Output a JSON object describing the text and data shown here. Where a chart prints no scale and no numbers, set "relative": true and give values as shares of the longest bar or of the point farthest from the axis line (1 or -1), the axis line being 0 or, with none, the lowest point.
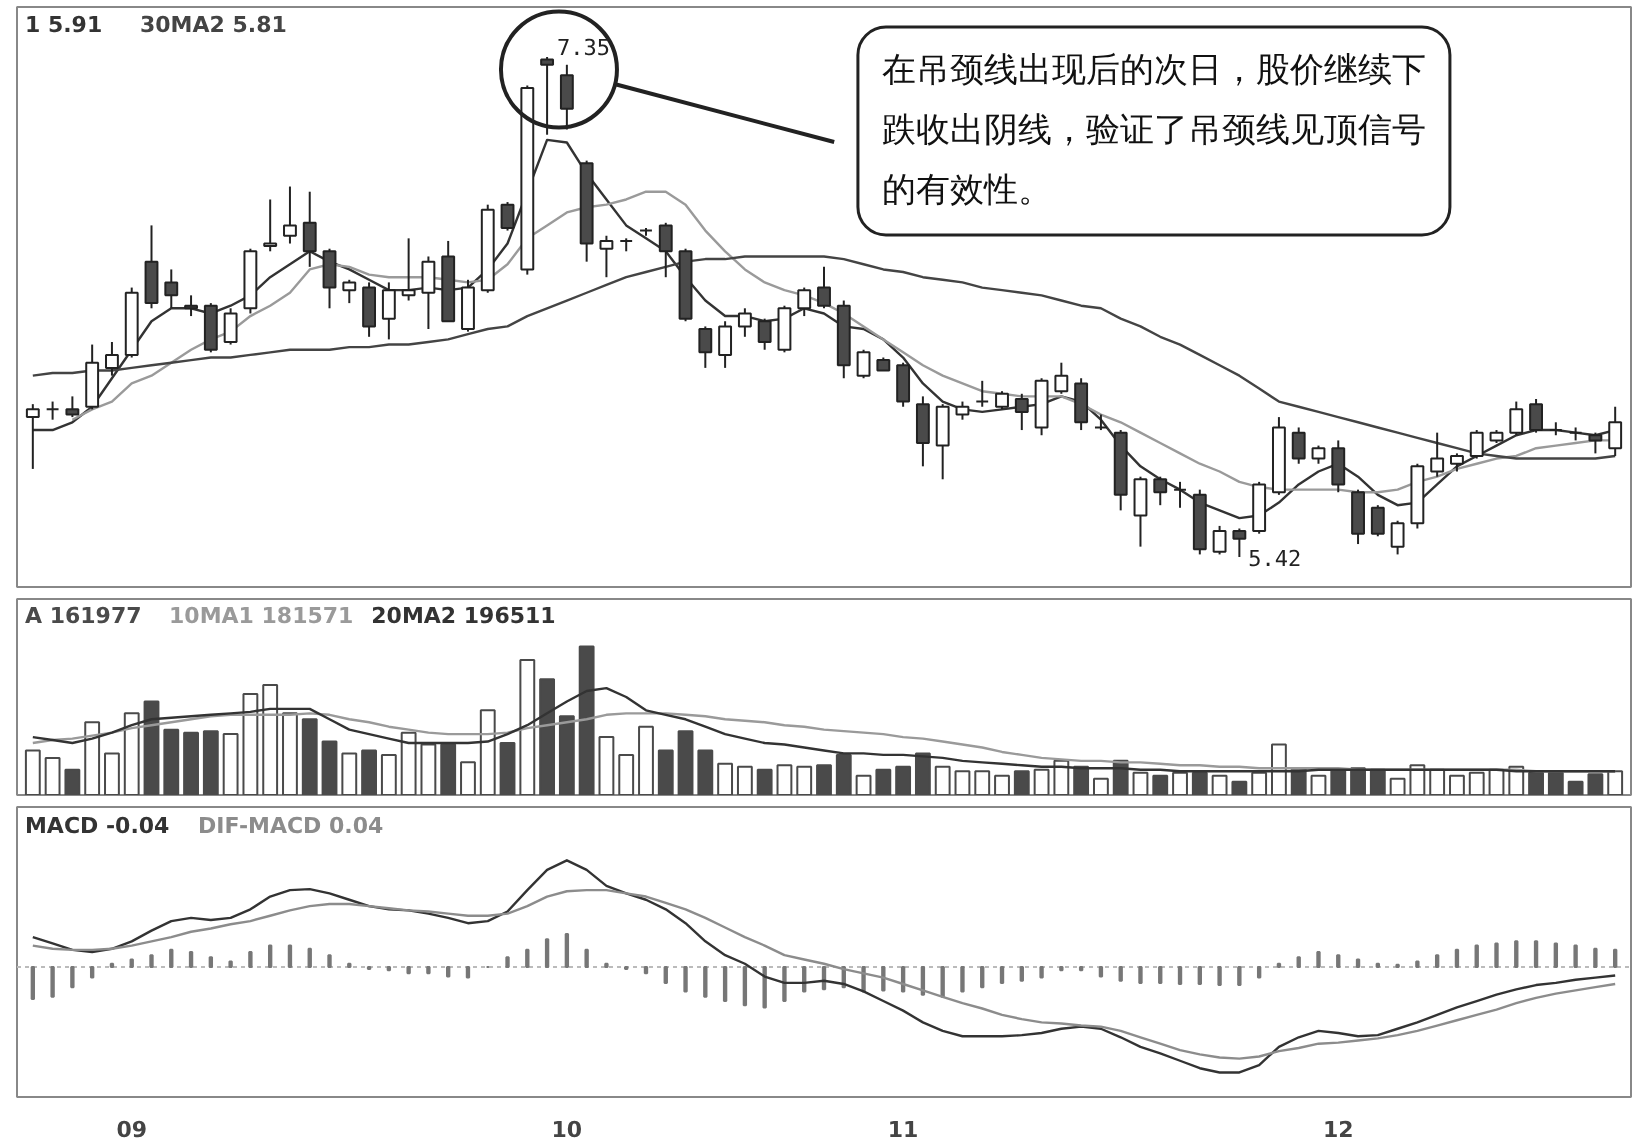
{
  "chart_data": [
    {
      "type": "candlestick",
      "legend": "top left",
      "tick_labels": false,
      "categories": [
        null,
        null,
        null,
        null,
        null,
        "09",
        null,
        null,
        null,
        null,
        null,
        null,
        null,
        null,
        null,
        null,
        null,
        null,
        null,
        null,
        null,
        null,
        null,
        null,
        null,
        null,
        null,
        "10",
        null,
        null,
        null,
        null,
        null,
        null,
        null,
        null,
        null,
        null,
        null,
        null,
        null,
        null,
        null,
        null,
        "11",
        null,
        null,
        null,
        null,
        null,
        null,
        null,
        null,
        null,
        null,
        null,
        null,
        null,
        null,
        null,
        null,
        null,
        null,
        null,
        null,
        null,
        "12",
        null,
        null,
        null,
        null,
        null,
        null,
        null,
        null,
        null,
        null,
        null,
        null,
        null,
        null
      ],
      "ohlc": [
        [
          5.96,
          6.01,
          5.76,
          5.99
        ],
        [
          5.99,
          6.02,
          5.95,
          5.99
        ],
        [
          5.99,
          6.04,
          5.96,
          5.97
        ],
        [
          6.0,
          6.24,
          5.99,
          6.17
        ],
        [
          6.15,
          6.25,
          6.12,
          6.2
        ],
        [
          6.2,
          6.46,
          6.19,
          6.44
        ],
        [
          6.56,
          6.7,
          6.38,
          6.4
        ],
        [
          6.48,
          6.53,
          6.38,
          6.43
        ],
        [
          6.39,
          6.43,
          6.35,
          6.38
        ],
        [
          6.39,
          6.4,
          6.21,
          6.22
        ],
        [
          6.25,
          6.38,
          6.24,
          6.36
        ],
        [
          6.38,
          6.61,
          6.36,
          6.6
        ],
        [
          6.62,
          6.8,
          6.6,
          6.63
        ],
        [
          6.66,
          6.85,
          6.63,
          6.7
        ],
        [
          6.71,
          6.83,
          6.54,
          6.6
        ],
        [
          6.6,
          6.61,
          6.38,
          6.46
        ],
        [
          6.45,
          6.49,
          6.4,
          6.48
        ],
        [
          6.46,
          6.48,
          6.27,
          6.31
        ],
        [
          6.34,
          6.48,
          6.26,
          6.45
        ],
        [
          6.43,
          6.65,
          6.41,
          6.45
        ],
        [
          6.44,
          6.58,
          6.3,
          6.56
        ],
        [
          6.58,
          6.64,
          6.33,
          6.33
        ],
        [
          6.3,
          6.49,
          6.29,
          6.46
        ],
        [
          6.45,
          6.78,
          6.44,
          6.76
        ],
        [
          6.78,
          6.79,
          6.68,
          6.69
        ],
        [
          6.53,
          7.24,
          6.51,
          7.23
        ],
        [
          7.34,
          7.35,
          7.05,
          7.32
        ],
        [
          7.28,
          7.32,
          7.07,
          7.15
        ],
        [
          6.94,
          6.95,
          6.56,
          6.63
        ],
        [
          6.61,
          6.66,
          6.5,
          6.64
        ],
        [
          6.64,
          6.65,
          6.6,
          6.64
        ],
        [
          6.68,
          6.69,
          6.66,
          6.68
        ],
        [
          6.7,
          6.71,
          6.5,
          6.6
        ],
        [
          6.6,
          6.61,
          6.33,
          6.34
        ],
        [
          6.3,
          6.31,
          6.15,
          6.21
        ],
        [
          6.2,
          6.33,
          6.15,
          6.31
        ],
        [
          6.31,
          6.38,
          6.27,
          6.36
        ],
        [
          6.33,
          6.34,
          6.22,
          6.25
        ],
        [
          6.22,
          6.39,
          6.21,
          6.38
        ],
        [
          6.38,
          6.46,
          6.35,
          6.45
        ],
        [
          6.46,
          6.54,
          6.38,
          6.39
        ],
        [
          6.39,
          6.41,
          6.11,
          6.16
        ],
        [
          6.12,
          6.22,
          6.11,
          6.21
        ],
        [
          6.18,
          6.19,
          6.14,
          6.14
        ],
        [
          6.16,
          6.17,
          6.0,
          6.02
        ],
        [
          6.01,
          6.04,
          5.77,
          5.86
        ],
        [
          5.85,
          6.01,
          5.72,
          6.0
        ],
        [
          5.97,
          6.02,
          5.95,
          6.0
        ],
        [
          6.02,
          6.1,
          6.0,
          6.02
        ],
        [
          6.0,
          6.06,
          5.99,
          6.05
        ],
        [
          6.03,
          6.05,
          5.91,
          5.98
        ],
        [
          5.92,
          6.11,
          5.89,
          6.1
        ],
        [
          6.06,
          6.17,
          6.05,
          6.12
        ],
        [
          6.09,
          6.11,
          5.91,
          5.94
        ],
        [
          5.92,
          5.97,
          5.91,
          5.92
        ],
        [
          5.9,
          5.91,
          5.6,
          5.66
        ],
        [
          5.58,
          5.73,
          5.46,
          5.72
        ],
        [
          5.72,
          5.73,
          5.62,
          5.67
        ],
        [
          5.68,
          5.71,
          5.61,
          5.68
        ],
        [
          5.66,
          5.68,
          5.43,
          5.45
        ],
        [
          5.44,
          5.54,
          5.43,
          5.52
        ],
        [
          5.52,
          5.53,
          5.42,
          5.49
        ],
        [
          5.52,
          5.71,
          5.51,
          5.7
        ],
        [
          5.67,
          5.96,
          5.66,
          5.92
        ],
        [
          5.9,
          5.92,
          5.78,
          5.8
        ],
        [
          5.8,
          5.85,
          5.78,
          5.84
        ],
        [
          5.84,
          5.87,
          5.67,
          5.7
        ],
        [
          5.67,
          5.68,
          5.47,
          5.51
        ],
        [
          5.61,
          5.62,
          5.5,
          5.51
        ],
        [
          5.46,
          5.56,
          5.43,
          5.55
        ],
        [
          5.55,
          5.78,
          5.53,
          5.77
        ],
        [
          5.75,
          5.9,
          5.73,
          5.8
        ],
        [
          5.78,
          5.82,
          5.75,
          5.81
        ],
        [
          5.81,
          5.91,
          5.8,
          5.9
        ],
        [
          5.87,
          5.91,
          5.86,
          5.9
        ],
        [
          5.9,
          6.02,
          5.89,
          5.99
        ],
        [
          6.01,
          6.03,
          5.9,
          5.91
        ],
        [
          5.91,
          5.94,
          5.89,
          5.91
        ],
        [
          5.9,
          5.92,
          5.87,
          5.9
        ],
        [
          5.89,
          5.9,
          5.82,
          5.87
        ],
        [
          5.84,
          6.0,
          5.81,
          5.94
        ]
      ],
      "series": [
        {
          "name": "1 5.91",
          "type": "line",
          "color": "#333333",
          "values": [
            5.91,
            5.91,
            5.94,
            6.0,
            6.11,
            6.22,
            6.33,
            6.38,
            6.38,
            6.36,
            6.39,
            6.43,
            6.5,
            6.55,
            6.6,
            6.56,
            6.53,
            6.49,
            6.45,
            6.45,
            6.46,
            6.45,
            6.46,
            6.53,
            6.63,
            6.83,
            7.03,
            7.02,
            6.9,
            6.8,
            6.7,
            6.65,
            6.6,
            6.5,
            6.41,
            6.35,
            6.35,
            6.33,
            6.34,
            6.38,
            6.36,
            6.31,
            6.3,
            6.26,
            6.19,
            6.09,
            6.02,
            5.99,
            5.98,
            5.99,
            6.0,
            6.01,
            6.04,
            6.02,
            5.95,
            5.85,
            5.77,
            5.72,
            5.68,
            5.63,
            5.6,
            5.57,
            5.58,
            5.63,
            5.7,
            5.75,
            5.78,
            5.73,
            5.66,
            5.62,
            5.63,
            5.7,
            5.77,
            5.81,
            5.85,
            5.89,
            5.91,
            5.91,
            5.9,
            5.89,
            5.91
          ]
        },
        {
          "type": "line",
          "color": "#9a9a9a",
          "values": [
            null,
            null,
            5.95,
            5.99,
            6.02,
            6.09,
            6.12,
            6.17,
            6.22,
            6.26,
            6.29,
            6.35,
            6.39,
            6.44,
            6.53,
            6.55,
            6.54,
            6.51,
            6.5,
            6.5,
            6.5,
            6.49,
            6.48,
            6.49,
            6.55,
            6.65,
            6.7,
            6.75,
            6.77,
            6.78,
            6.8,
            6.83,
            6.83,
            6.78,
            6.68,
            6.6,
            6.53,
            6.48,
            6.45,
            6.43,
            6.4,
            6.36,
            6.31,
            6.26,
            6.21,
            6.16,
            6.12,
            6.09,
            6.06,
            6.05,
            6.04,
            6.04,
            6.04,
            6.01,
            5.97,
            5.94,
            5.9,
            5.86,
            5.82,
            5.78,
            5.75,
            5.71,
            5.69,
            5.68,
            5.68,
            5.68,
            5.68,
            5.67,
            5.67,
            5.68,
            5.71,
            5.73,
            5.76,
            5.78,
            5.8,
            5.81,
            5.84,
            5.85,
            5.86,
            5.87,
            5.87
          ]
        },
        {
          "name": "30MA2 5.81",
          "type": "line",
          "color": "#444444",
          "values": [
            6.12,
            6.13,
            6.13,
            6.14,
            6.14,
            6.15,
            6.16,
            6.17,
            6.18,
            6.19,
            6.19,
            6.2,
            6.21,
            6.22,
            6.22,
            6.22,
            6.23,
            6.23,
            6.24,
            6.24,
            6.25,
            6.26,
            6.28,
            6.3,
            6.31,
            6.35,
            6.38,
            6.41,
            6.44,
            6.47,
            6.5,
            6.52,
            6.54,
            6.56,
            6.57,
            6.57,
            6.58,
            6.58,
            6.58,
            6.58,
            6.58,
            6.57,
            6.55,
            6.53,
            6.52,
            6.5,
            6.49,
            6.48,
            6.46,
            6.45,
            6.44,
            6.43,
            6.41,
            6.39,
            6.38,
            6.34,
            6.31,
            6.27,
            6.24,
            6.2,
            6.16,
            6.12,
            6.07,
            6.02,
            6.0,
            5.98,
            5.96,
            5.94,
            5.92,
            5.9,
            5.88,
            5.86,
            5.84,
            5.82,
            5.81,
            5.8,
            5.8,
            5.8,
            5.8,
            5.8,
            5.81
          ]
        }
      ],
      "annotations": [
        "7.35",
        "5.42",
        "在吊颈线出现后的次日，股价继续下跌收出阴线，验证了吊颈线见顶信号的有效性。"
      ]
    },
    {
      "type": "bar",
      "relative": true,
      "legend": "top left",
      "tick_labels": false,
      "categories": [
        null,
        null,
        null,
        null,
        null,
        "09",
        null,
        null,
        null,
        null,
        null,
        null,
        null,
        null,
        null,
        null,
        null,
        null,
        null,
        null,
        null,
        null,
        null,
        null,
        null,
        null,
        null,
        "10",
        null,
        null,
        null,
        null,
        null,
        null,
        null,
        null,
        null,
        null,
        null,
        null,
        null,
        null,
        null,
        null,
        "11",
        null,
        null,
        null,
        null,
        null,
        null,
        null,
        null,
        null,
        null,
        null,
        null,
        null,
        null,
        null,
        null,
        null,
        null,
        null,
        null,
        null,
        "12",
        null,
        null,
        null,
        null,
        null,
        null,
        null,
        null,
        null,
        null,
        null,
        null,
        null,
        null
      ],
      "series": [
        {
          "name": "A 161977",
          "type": "bar",
          "color": "#4a4a4a",
          "values": [
            0.3,
            0.25,
            0.17,
            0.49,
            0.28,
            0.55,
            0.63,
            0.44,
            0.42,
            0.43,
            0.41,
            0.68,
            0.74,
            0.55,
            0.51,
            0.36,
            0.28,
            0.3,
            0.27,
            0.42,
            0.34,
            0.34,
            0.22,
            0.57,
            0.35,
            0.91,
            0.78,
            0.53,
            1,
            0.39,
            0.27,
            0.46,
            0.3,
            0.43,
            0.3,
            0.21,
            0.19,
            0.17,
            0.2,
            0.19,
            0.2,
            0.27,
            0.13,
            0.17,
            0.19,
            0.28,
            0.19,
            0.16,
            0.16,
            0.13,
            0.16,
            0.17,
            0.23,
            0.19,
            0.11,
            0.23,
            0.15,
            0.13,
            0.15,
            0.15,
            0.13,
            0.09,
            0.15,
            0.34,
            0.18,
            0.13,
            0.17,
            0.18,
            0.17,
            0.11,
            0.2,
            0.17,
            0.13,
            0.15,
            0.17,
            0.19,
            0.15,
            0.15,
            0.09,
            0.14,
            0.16
          ],
          "colors": [
            "#ffffff",
            "#ffffff",
            "#4a4a4a",
            "#ffffff",
            "#ffffff",
            "#ffffff",
            "#4a4a4a",
            "#4a4a4a",
            "#4a4a4a",
            "#4a4a4a",
            "#ffffff",
            "#ffffff",
            "#ffffff",
            "#ffffff",
            "#4a4a4a",
            "#4a4a4a",
            "#ffffff",
            "#4a4a4a",
            "#ffffff",
            "#ffffff",
            "#ffffff",
            "#4a4a4a",
            "#ffffff",
            "#ffffff",
            "#4a4a4a",
            "#ffffff",
            "#4a4a4a",
            "#4a4a4a",
            "#4a4a4a",
            "#ffffff",
            "#ffffff",
            "#ffffff",
            "#4a4a4a",
            "#4a4a4a",
            "#4a4a4a",
            "#ffffff",
            "#ffffff",
            "#4a4a4a",
            "#ffffff",
            "#ffffff",
            "#4a4a4a",
            "#4a4a4a",
            "#ffffff",
            "#4a4a4a",
            "#4a4a4a",
            "#4a4a4a",
            "#ffffff",
            "#ffffff",
            "#ffffff",
            "#ffffff",
            "#4a4a4a",
            "#ffffff",
            "#ffffff",
            "#4a4a4a",
            "#ffffff",
            "#4a4a4a",
            "#ffffff",
            "#4a4a4a",
            "#ffffff",
            "#4a4a4a",
            "#ffffff",
            "#4a4a4a",
            "#ffffff",
            "#ffffff",
            "#4a4a4a",
            "#ffffff",
            "#4a4a4a",
            "#4a4a4a",
            "#4a4a4a",
            "#ffffff",
            "#ffffff",
            "#ffffff",
            "#ffffff",
            "#ffffff",
            "#ffffff",
            "#ffffff",
            "#4a4a4a",
            "#4a4a4a",
            "#4a4a4a",
            "#4a4a4a",
            "#ffffff"
          ]
        },
        {
          "name": "10MA1 181571",
          "type": "line",
          "color": "#9a9a9a",
          "values": [
            0.35,
            0.37,
            0.38,
            0.4,
            0.42,
            0.45,
            0.47,
            0.49,
            0.51,
            0.53,
            0.54,
            0.54,
            0.54,
            0.54,
            0.55,
            0.54,
            0.51,
            0.49,
            0.46,
            0.44,
            0.42,
            0.41,
            0.41,
            0.41,
            0.42,
            0.45,
            0.47,
            0.49,
            0.51,
            0.54,
            0.55,
            0.55,
            0.55,
            0.54,
            0.53,
            0.51,
            0.5,
            0.49,
            0.47,
            0.46,
            0.44,
            0.43,
            0.42,
            0.41,
            0.39,
            0.38,
            0.36,
            0.34,
            0.32,
            0.29,
            0.27,
            0.25,
            0.24,
            0.23,
            0.23,
            0.22,
            0.22,
            0.21,
            0.2,
            0.2,
            0.19,
            0.19,
            0.18,
            0.18,
            0.18,
            0.18,
            0.18,
            0.17,
            0.17,
            0.17,
            0.17,
            0.17,
            0.17,
            0.17,
            0.17,
            0.17,
            0.16,
            0.16,
            0.16,
            0.16,
            0.16
          ]
        },
        {
          "name": "20MA2 196511",
          "type": "line",
          "color": "#333333",
          "values": [
            0.39,
            0.37,
            0.35,
            0.38,
            0.42,
            0.47,
            0.51,
            0.52,
            0.53,
            0.54,
            0.55,
            0.56,
            0.58,
            0.58,
            0.58,
            0.51,
            0.44,
            0.41,
            0.38,
            0.35,
            0.35,
            0.35,
            0.35,
            0.36,
            0.41,
            0.47,
            0.55,
            0.63,
            0.7,
            0.72,
            0.66,
            0.57,
            0.54,
            0.51,
            0.46,
            0.41,
            0.38,
            0.35,
            0.34,
            0.32,
            0.3,
            0.28,
            0.28,
            0.27,
            0.27,
            0.26,
            0.25,
            0.23,
            0.22,
            0.21,
            0.2,
            0.19,
            0.19,
            0.18,
            0.18,
            0.18,
            0.17,
            0.17,
            0.16,
            0.16,
            0.16,
            0.16,
            0.16,
            0.16,
            0.16,
            0.17,
            0.17,
            0.17,
            0.17,
            0.17,
            0.17,
            0.17,
            0.17,
            0.17,
            0.17,
            0.16,
            0.16,
            0.16,
            0.16,
            0.16,
            0.16
          ]
        }
      ]
    },
    {
      "type": "bar",
      "relative": true,
      "legend": "top left",
      "tick_labels": "x",
      "ref_lines": [
        {
          "axis": "y",
          "value": 0,
          "color": "#bbbbbb",
          "line_style": "dotted"
        }
      ],
      "categories": [
        null,
        null,
        null,
        null,
        null,
        "09",
        null,
        null,
        null,
        null,
        null,
        null,
        null,
        null,
        null,
        null,
        null,
        null,
        null,
        null,
        null,
        null,
        null,
        null,
        null,
        null,
        null,
        "10",
        null,
        null,
        null,
        null,
        null,
        null,
        null,
        null,
        null,
        null,
        null,
        null,
        null,
        null,
        null,
        null,
        "11",
        null,
        null,
        null,
        null,
        null,
        null,
        null,
        null,
        null,
        null,
        null,
        null,
        null,
        null,
        null,
        null,
        null,
        null,
        null,
        null,
        null,
        "12",
        null,
        null,
        null,
        null,
        null,
        null,
        null,
        null,
        null,
        null,
        null,
        null,
        null,
        null
      ],
      "series": [
        {
          "type": "bar",
          "color": "#777777",
          "values": [
            -0.3,
            -0.28,
            -0.19,
            -0.1,
            0.03,
            0.07,
            0.11,
            0.16,
            0.14,
            0.09,
            0.05,
            0.14,
            0.2,
            0.2,
            0.17,
            0.11,
            0.03,
            -0.02,
            -0.03,
            -0.06,
            -0.06,
            -0.09,
            -0.1,
            0,
            0.09,
            0.16,
            0.26,
            0.31,
            0.16,
            0.03,
            -0.02,
            -0.06,
            -0.15,
            -0.23,
            -0.28,
            -0.32,
            -0.36,
            -0.38,
            -0.32,
            -0.23,
            -0.21,
            -0.19,
            -0.23,
            -0.22,
            -0.23,
            -0.26,
            -0.28,
            -0.23,
            -0.19,
            -0.15,
            -0.13,
            -0.1,
            -0.03,
            -0.03,
            -0.09,
            -0.13,
            -0.15,
            -0.15,
            -0.16,
            -0.16,
            -0.17,
            -0.17,
            -0.1,
            0.03,
            0.09,
            0.14,
            0.11,
            0.07,
            0.03,
            0.02,
            0.05,
            0.11,
            0.16,
            0.2,
            0.22,
            0.24,
            0.24,
            0.22,
            0.2,
            0.17,
            0.16
          ]
        },
        {
          "name": "MACD -0.04",
          "type": "line",
          "color": "#333333",
          "values": [
            0.28,
            0.22,
            0.16,
            0.14,
            0.17,
            0.24,
            0.34,
            0.43,
            0.46,
            0.44,
            0.46,
            0.54,
            0.66,
            0.72,
            0.73,
            0.69,
            0.63,
            0.57,
            0.54,
            0.53,
            0.5,
            0.46,
            0.41,
            0.43,
            0.52,
            0.72,
            0.91,
            1,
            0.91,
            0.76,
            0.69,
            0.63,
            0.54,
            0.41,
            0.24,
            0.11,
            0.03,
            -0.09,
            -0.15,
            -0.15,
            -0.13,
            -0.16,
            -0.23,
            -0.32,
            -0.41,
            -0.52,
            -0.6,
            -0.65,
            -0.65,
            -0.65,
            -0.64,
            -0.62,
            -0.58,
            -0.56,
            -0.58,
            -0.66,
            -0.75,
            -0.81,
            -0.88,
            -0.95,
            -0.99,
            -0.99,
            -0.92,
            -0.75,
            -0.66,
            -0.6,
            -0.62,
            -0.65,
            -0.64,
            -0.58,
            -0.52,
            -0.45,
            -0.38,
            -0.32,
            -0.26,
            -0.21,
            -0.17,
            -0.15,
            -0.12,
            -0.1,
            -0.08
          ]
        },
        {
          "name": "DIF-MACD 0.04",
          "type": "line",
          "color": "#8c8c8c",
          "values": [
            0.2,
            0.17,
            0.16,
            0.16,
            0.17,
            0.2,
            0.24,
            0.28,
            0.33,
            0.36,
            0.4,
            0.43,
            0.48,
            0.53,
            0.57,
            0.59,
            0.59,
            0.57,
            0.55,
            0.53,
            0.52,
            0.5,
            0.48,
            0.48,
            0.5,
            0.57,
            0.66,
            0.71,
            0.72,
            0.72,
            0.69,
            0.66,
            0.6,
            0.54,
            0.46,
            0.37,
            0.28,
            0.2,
            0.11,
            0.07,
            0.03,
            -0.02,
            -0.06,
            -0.1,
            -0.16,
            -0.22,
            -0.28,
            -0.34,
            -0.39,
            -0.45,
            -0.49,
            -0.52,
            -0.53,
            -0.55,
            -0.56,
            -0.6,
            -0.66,
            -0.72,
            -0.78,
            -0.82,
            -0.85,
            -0.86,
            -0.84,
            -0.79,
            -0.76,
            -0.72,
            -0.71,
            -0.69,
            -0.67,
            -0.64,
            -0.6,
            -0.55,
            -0.5,
            -0.45,
            -0.4,
            -0.34,
            -0.29,
            -0.25,
            -0.22,
            -0.19,
            -0.16
          ]
        }
      ]
    }
  ]
}
